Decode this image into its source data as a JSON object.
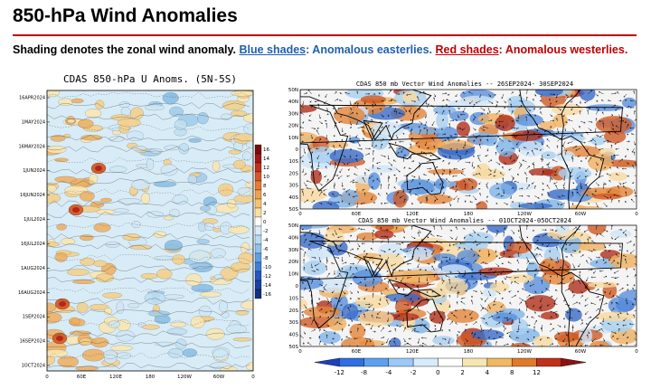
{
  "page": {
    "title": "850-hPa Wind Anomalies",
    "subtitle": {
      "lead": "Shading denotes the zonal wind anomaly.",
      "blue_link": "Blue shades",
      "blue_text": ": Anomalous easterlies.",
      "red_link": "Red shades",
      "red_text": ": Anomalous westerlies."
    }
  },
  "hovmoller": {
    "title": "CDAS 850-hPa U Anoms. (5N-5S)",
    "date_labels": [
      "16APR2024",
      "1MAY2024",
      "16MAY2024",
      "1JUN2024",
      "16JUN2024",
      "1JUL2024",
      "16JUL2024",
      "1AUG2024",
      "16AUG2024",
      "1SEP2024",
      "16SEP2024",
      "1OCT2024"
    ],
    "lon_labels": [
      "0",
      "60E",
      "120E",
      "180",
      "120W",
      "60W",
      "0"
    ],
    "colorbar_labels": [
      "16",
      "14",
      "12",
      "10",
      "8",
      "6",
      "4",
      "2",
      "0",
      "-2",
      "-4",
      "-6",
      "-8",
      "-10",
      "-12",
      "-14",
      "-16"
    ]
  },
  "map_top": {
    "title": "CDAS 850 mb Vector Wind Anomalies -- 26SEP2024- 30SEP2024",
    "lat_labels": [
      "50N",
      "40N",
      "30N",
      "20N",
      "10N",
      "0",
      "10S",
      "20S",
      "30S",
      "40S",
      "50S"
    ],
    "lon_labels": [
      "0",
      "60E",
      "120E",
      "180",
      "120W",
      "60W",
      "0"
    ]
  },
  "map_bottom": {
    "title": "CDAS 850 mb Vector Wind Anomalies -- 01OCT2024-05OCT2024",
    "lat_labels": [
      "50N",
      "40N",
      "30N",
      "20N",
      "10N",
      "0",
      "10S",
      "20S",
      "30S",
      "40S",
      "50S"
    ],
    "lon_labels": [
      "0",
      "60E",
      "120E",
      "180",
      "120W",
      "60W",
      "0"
    ]
  },
  "colorbar": {
    "labels": [
      "-12",
      "-8",
      "-4",
      "-2",
      "0",
      "2",
      "4",
      "8",
      "12"
    ],
    "colors": [
      "#1b3fbf",
      "#2f6fe0",
      "#5ea0f0",
      "#9cc9f7",
      "#d6ecfb",
      "#ffffff",
      "#f7e6b2",
      "#f0b860",
      "#e07a2a",
      "#c0301a",
      "#8e1010"
    ]
  }
}
